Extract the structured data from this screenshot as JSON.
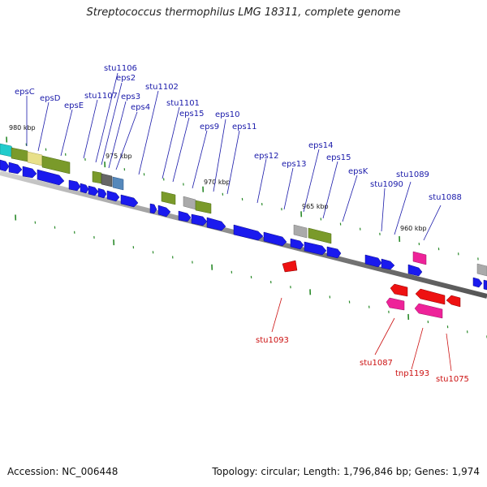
{
  "title": "Streptococcus thermophilus LMG 18311, complete genome",
  "footer": {
    "accession": "Accession: NC_006448",
    "summary": "Topology: circular; Length: 1,796,846 bp; Genes: 1,974"
  },
  "colors": {
    "forward_gene": "#1a1aee",
    "reverse_gene": "#ee1111",
    "label_forward": "#1a1aaa",
    "label_reverse": "#cc1111",
    "ruler_tick": "#2a8a2a",
    "backbone": "#8a8a8a",
    "olive": "#7a9a2a",
    "magenta": "#ee2299",
    "cyan": "#22cccc",
    "khaki": "#e8e08a",
    "gray": "#aaaaaa",
    "steel": "#5588bb",
    "dark_gray": "#666666"
  },
  "ruler": {
    "labels": [
      "980 kbp",
      "975 kbp",
      "970 kbp",
      "965 kbp",
      "960 kbp"
    ]
  },
  "upper_labels": [
    "epsC",
    "epsD",
    "epsE",
    "stu1107",
    "stu1106",
    "eps2",
    "eps3",
    "eps4",
    "stu1102",
    "stu1101",
    "eps15",
    "eps9",
    "eps10",
    "eps11",
    "eps12",
    "eps13",
    "eps14",
    "eps15",
    "epsK",
    "stu1090",
    "stu1089",
    "stu1088"
  ],
  "lower_labels": [
    "stu1093",
    "stu1087",
    "tnp1193",
    "stu1075"
  ]
}
